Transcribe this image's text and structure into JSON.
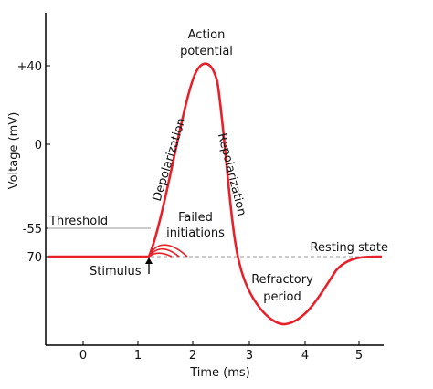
{
  "chart_data": {
    "type": "line",
    "title": "",
    "xlabel": "Time (ms)",
    "ylabel": "Voltage (mV)",
    "x_ticks": [
      "0",
      "1",
      "2",
      "3",
      "4",
      "5"
    ],
    "y_ticks": [
      "+40",
      "0",
      "-55",
      "-70"
    ],
    "series": [
      {
        "x": [
          -0.7,
          1.2,
          1.5,
          2.0,
          2.25,
          2.5,
          2.8,
          3.1,
          3.6,
          4.1,
          4.6,
          4.9,
          5.4
        ],
        "y": [
          -70,
          -70,
          -45,
          10,
          40,
          10,
          -50,
          -80,
          -90,
          -84,
          -72,
          -70,
          -70
        ]
      }
    ]
  },
  "annotations": {
    "action_potential_line1": "Action",
    "action_potential_line2": "potential",
    "depolarization": "Depolarization",
    "repolarization": "Repolarization",
    "threshold": "Threshold",
    "failed_line1": "Failed",
    "failed_line2": "initiations",
    "resting_state": "Resting state",
    "stimulus": "Stimulus",
    "refractory_line1": "Refractory",
    "refractory_line2": "period"
  },
  "colors": {
    "curve": "#e8202a",
    "axis": "#000000",
    "reference_line": "#999999"
  }
}
